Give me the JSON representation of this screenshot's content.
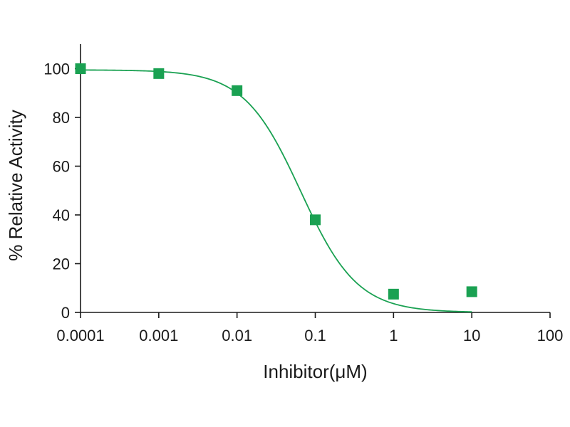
{
  "chart_data": {
    "type": "scatter",
    "xscale": "log",
    "xlabel": "Inhibitor(μM)",
    "ylabel": "% Relative Activity",
    "xlim": [
      0.0001,
      100
    ],
    "ylim": [
      0,
      110
    ],
    "x_ticks": [
      {
        "value": 0.0001,
        "label": "0.0001"
      },
      {
        "value": 0.001,
        "label": "0.001"
      },
      {
        "value": 0.01,
        "label": "0.01"
      },
      {
        "value": 0.1,
        "label": "0.1"
      },
      {
        "value": 1,
        "label": "1"
      },
      {
        "value": 10,
        "label": "10"
      },
      {
        "value": 100,
        "label": "100"
      }
    ],
    "y_ticks": [
      {
        "value": 0,
        "label": "0"
      },
      {
        "value": 20,
        "label": "20"
      },
      {
        "value": 40,
        "label": "40"
      },
      {
        "value": 60,
        "label": "60"
      },
      {
        "value": 80,
        "label": "80"
      },
      {
        "value": 100,
        "label": "100"
      }
    ],
    "grid": false,
    "series": [
      {
        "kind": "points",
        "marker": "square",
        "color": "#1aa152",
        "x": [
          0.0001,
          0.001,
          0.01,
          0.1,
          1,
          10
        ],
        "y": [
          100,
          98,
          91,
          38,
          7.5,
          8.5
        ]
      },
      {
        "kind": "fit-curve",
        "color": "#1aa152",
        "model": "four-parameter logistic",
        "top": 99.5,
        "bottom": 0,
        "ic50": 0.065,
        "hill": 1.2,
        "x_range": [
          0.0001,
          10
        ]
      }
    ]
  }
}
